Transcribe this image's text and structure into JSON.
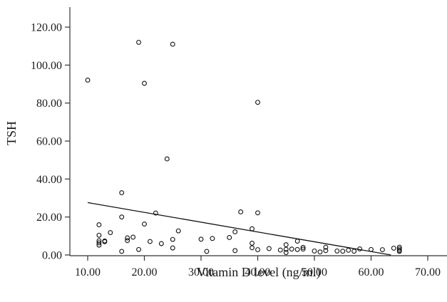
{
  "chart_data": {
    "type": "scatter",
    "xlabel": "Vitamin D level (ng/ml)",
    "ylabel": "TSH",
    "xlim": [
      5,
      73
    ],
    "ylim": [
      0,
      129
    ],
    "xticks": [
      10,
      20,
      30,
      40,
      50,
      60,
      70
    ],
    "yticks": [
      0,
      20,
      40,
      60,
      80,
      100,
      120
    ],
    "xtick_labels": [
      "10.00",
      "20.00",
      "30.00",
      "40.00",
      "50.00",
      "60.00",
      "70.00"
    ],
    "ytick_labels": [
      "0.00",
      "20.00",
      "40.00",
      "60.00",
      "80.00",
      "100.00",
      "120.00"
    ],
    "grid": false,
    "points": [
      {
        "x": 10,
        "y": 92.1
      },
      {
        "x": 12,
        "y": 15.9
      },
      {
        "x": 12,
        "y": 10.4
      },
      {
        "x": 12,
        "y": 7.5
      },
      {
        "x": 12,
        "y": 6.4
      },
      {
        "x": 12,
        "y": 5.2
      },
      {
        "x": 13,
        "y": 7.4
      },
      {
        "x": 13,
        "y": 7.0
      },
      {
        "x": 14,
        "y": 11.8
      },
      {
        "x": 16,
        "y": 32.8
      },
      {
        "x": 16,
        "y": 20.0
      },
      {
        "x": 16,
        "y": 1.9
      },
      {
        "x": 17,
        "y": 9.0
      },
      {
        "x": 17,
        "y": 7.6
      },
      {
        "x": 18,
        "y": 9.4
      },
      {
        "x": 19,
        "y": 112.0
      },
      {
        "x": 19,
        "y": 2.9
      },
      {
        "x": 20,
        "y": 90.4
      },
      {
        "x": 20,
        "y": 16.3
      },
      {
        "x": 21,
        "y": 7.1
      },
      {
        "x": 22,
        "y": 22.1
      },
      {
        "x": 23,
        "y": 6.0
      },
      {
        "x": 24,
        "y": 50.6
      },
      {
        "x": 25,
        "y": 111.0
      },
      {
        "x": 25,
        "y": 8.2
      },
      {
        "x": 25,
        "y": 3.7
      },
      {
        "x": 26,
        "y": 12.7
      },
      {
        "x": 30,
        "y": 8.3
      },
      {
        "x": 31,
        "y": 1.9
      },
      {
        "x": 32,
        "y": 8.7
      },
      {
        "x": 35,
        "y": 9.2
      },
      {
        "x": 36,
        "y": 12.2
      },
      {
        "x": 36,
        "y": 2.3
      },
      {
        "x": 37,
        "y": 22.7
      },
      {
        "x": 39,
        "y": 13.8
      },
      {
        "x": 39,
        "y": 6.2
      },
      {
        "x": 39,
        "y": 3.8
      },
      {
        "x": 40,
        "y": 80.4
      },
      {
        "x": 40,
        "y": 22.2
      },
      {
        "x": 40,
        "y": 2.8
      },
      {
        "x": 42,
        "y": 3.4
      },
      {
        "x": 44,
        "y": 2.6
      },
      {
        "x": 45,
        "y": 5.4
      },
      {
        "x": 45,
        "y": 3.0
      },
      {
        "x": 45,
        "y": 1.3
      },
      {
        "x": 46,
        "y": 3.1
      },
      {
        "x": 47,
        "y": 7.3
      },
      {
        "x": 47,
        "y": 2.9
      },
      {
        "x": 48,
        "y": 4.0
      },
      {
        "x": 48,
        "y": 3.1
      },
      {
        "x": 50,
        "y": 2.1
      },
      {
        "x": 51,
        "y": 1.6
      },
      {
        "x": 52,
        "y": 4.1
      },
      {
        "x": 52,
        "y": 2.3
      },
      {
        "x": 54,
        "y": 2.1
      },
      {
        "x": 55,
        "y": 2.0
      },
      {
        "x": 56,
        "y": 2.5
      },
      {
        "x": 57,
        "y": 2.0
      },
      {
        "x": 58,
        "y": 3.2
      },
      {
        "x": 60,
        "y": 2.9
      },
      {
        "x": 62,
        "y": 2.8
      },
      {
        "x": 64,
        "y": 3.6
      },
      {
        "x": 65,
        "y": 4.1
      },
      {
        "x": 65,
        "y": 3.2
      },
      {
        "x": 65,
        "y": 2.4
      },
      {
        "x": 65,
        "y": 1.9
      }
    ],
    "fit_line": {
      "x": [
        10,
        63.5
      ],
      "y": [
        27.6,
        0.0
      ]
    }
  }
}
